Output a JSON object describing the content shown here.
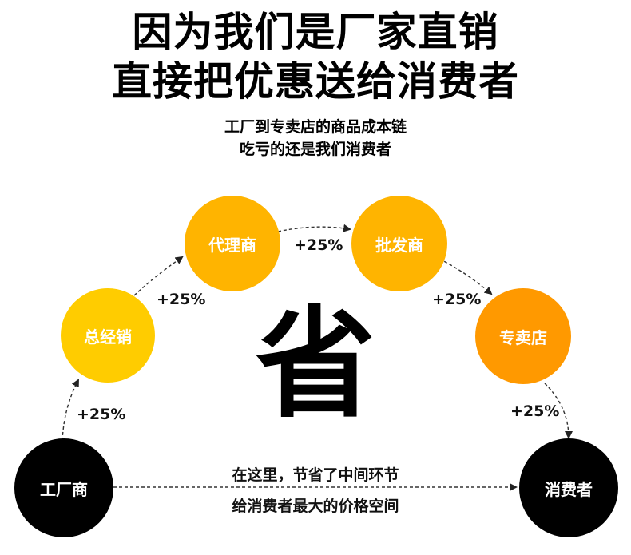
{
  "headline": {
    "line1": "因为我们是厂家直销",
    "line2": "直接把优惠送给消费者"
  },
  "subheadline": {
    "line1": "工厂到专卖店的商品成本链",
    "line2": "吃亏的还是我们消费者"
  },
  "center_char": "省",
  "nodes": {
    "factory": "工厂商",
    "general_distributor": "总经销",
    "agent": "代理商",
    "wholesaler": "批发商",
    "store": "专卖店",
    "consumer": "消费者"
  },
  "markups": {
    "factory_to_general": "+25%",
    "general_to_agent": "+25%",
    "agent_to_wholesaler": "+25%",
    "wholesaler_to_store": "+25%",
    "store_to_consumer": "+25%"
  },
  "direct_note": {
    "line1": "在这里，节省了中间环节",
    "line2": "给消费者最大的价格空间"
  },
  "colors": {
    "yellow": "#FFCC00",
    "amber": "#FFB400",
    "orange": "#FF9900",
    "black": "#000000",
    "arrow": "#333333"
  }
}
